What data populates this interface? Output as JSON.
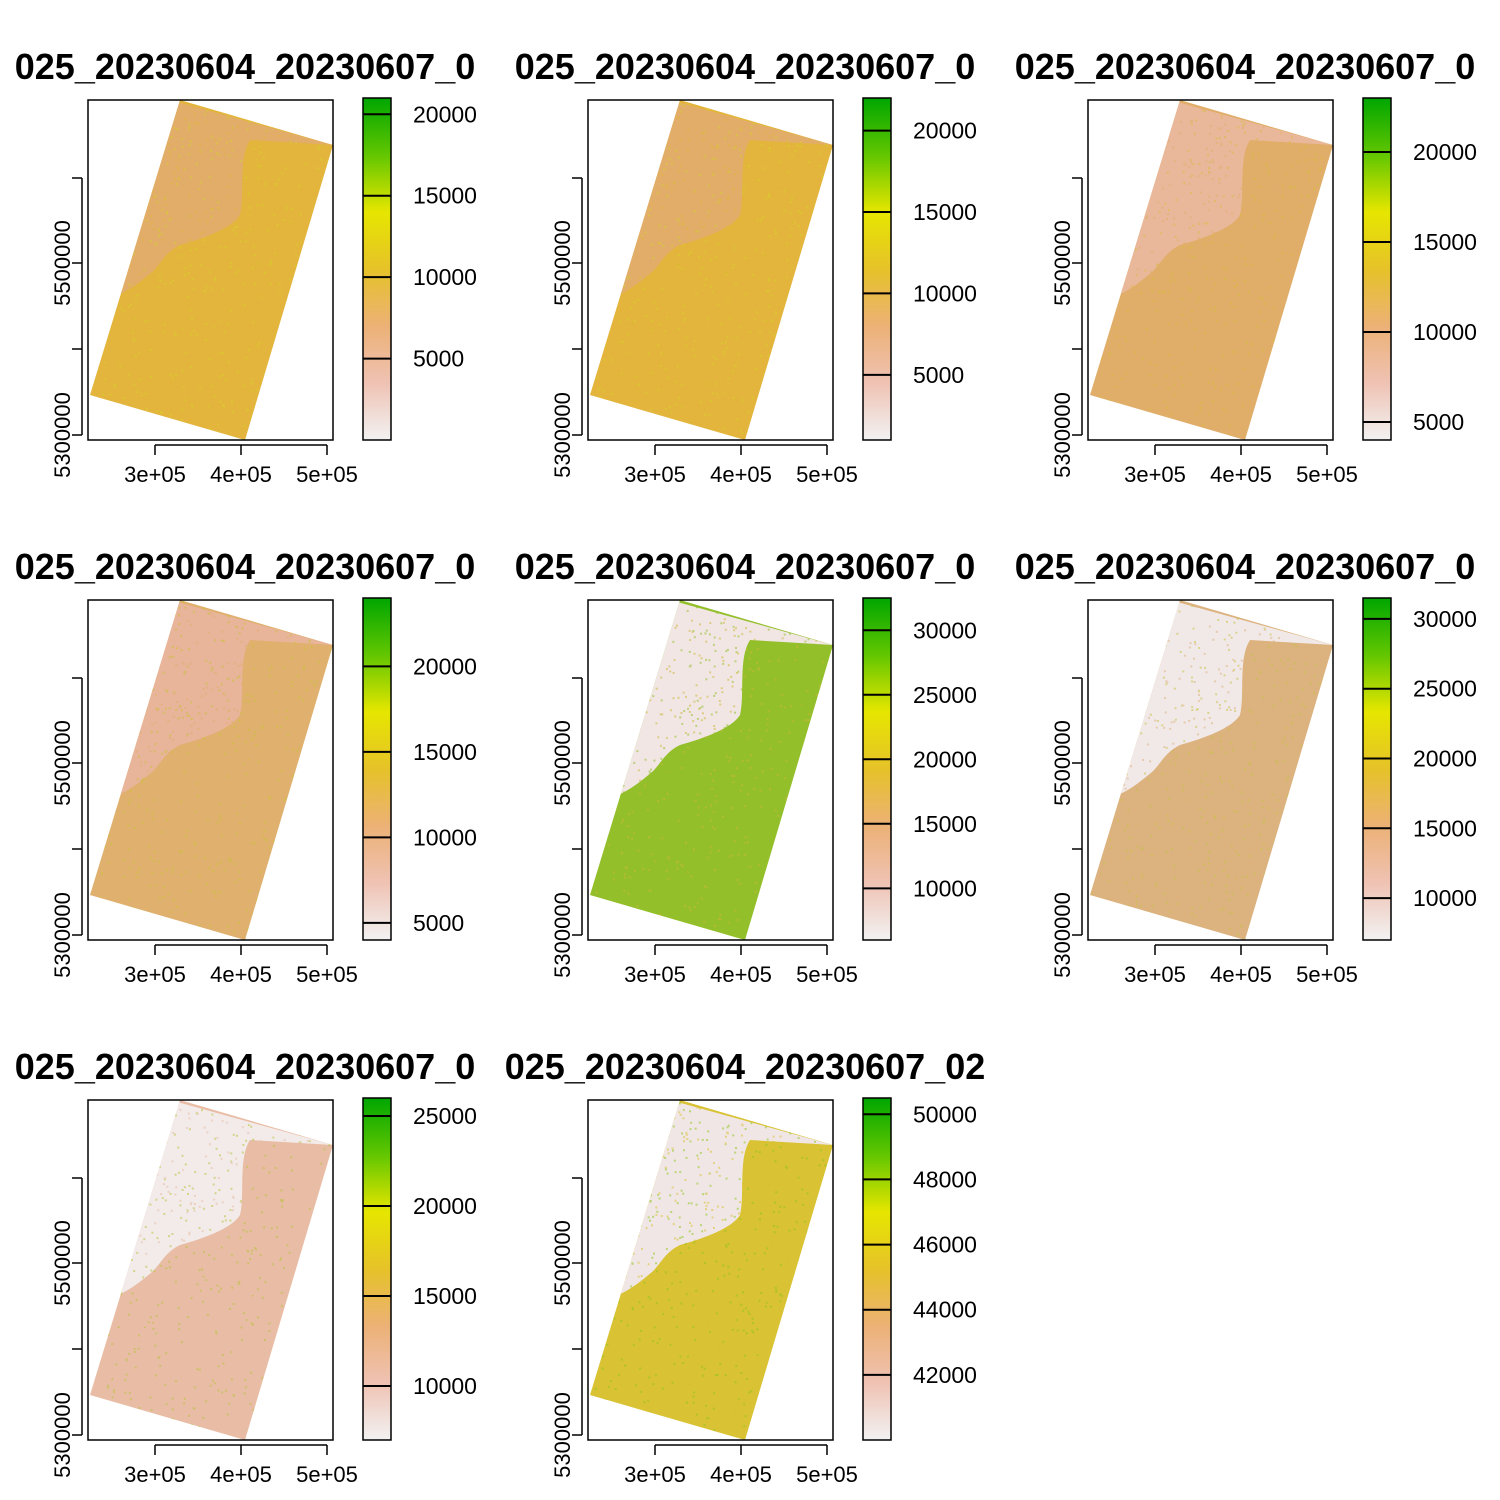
{
  "colors": {
    "ramp": [
      "#f2f2f2",
      "#efc2b3",
      "#ecb176",
      "#e6c229",
      "#e6e600",
      "#63c600",
      "#00a600"
    ]
  },
  "chart_data": [
    {
      "type": "heatmap",
      "title": "025_20230604_20230607_0",
      "x_ticks": [
        "3e+05",
        "4e+05",
        "5e+05"
      ],
      "y_ticks": [
        "5300000",
        "5500000"
      ],
      "legend_range": [
        0,
        21000
      ],
      "legend_ticks": [
        {
          "value": 5000,
          "label": "5000"
        },
        {
          "value": 10000,
          "label": "10000"
        },
        {
          "value": 15000,
          "label": "15000"
        },
        {
          "value": 20000,
          "label": "20000"
        }
      ],
      "fill": {
        "main": "#e3b53c",
        "north": "#e1ad69",
        "speckle": "#d7cf2c"
      }
    },
    {
      "type": "heatmap",
      "title": "025_20230604_20230607_0",
      "x_ticks": [
        "3e+05",
        "4e+05",
        "5e+05"
      ],
      "y_ticks": [
        "5300000",
        "5500000"
      ],
      "legend_range": [
        1000,
        22000
      ],
      "legend_ticks": [
        {
          "value": 5000,
          "label": "5000"
        },
        {
          "value": 10000,
          "label": "10000"
        },
        {
          "value": 15000,
          "label": "15000"
        },
        {
          "value": 20000,
          "label": "20000"
        }
      ],
      "fill": {
        "main": "#e3b53c",
        "north": "#e1ad69",
        "speckle": "#d7cf2c"
      }
    },
    {
      "type": "heatmap",
      "title": "025_20230604_20230607_0",
      "x_ticks": [
        "3e+05",
        "4e+05",
        "5e+05"
      ],
      "y_ticks": [
        "5300000",
        "5500000"
      ],
      "legend_range": [
        4000,
        23000
      ],
      "legend_ticks": [
        {
          "value": 5000,
          "label": "5000"
        },
        {
          "value": 10000,
          "label": "10000"
        },
        {
          "value": 15000,
          "label": "15000"
        },
        {
          "value": 20000,
          "label": "20000"
        }
      ],
      "fill": {
        "main": "#e1ae6a",
        "north": "#e9b89a",
        "speckle": "#d6bd3a"
      }
    },
    {
      "type": "heatmap",
      "title": "025_20230604_20230607_0",
      "x_ticks": [
        "3e+05",
        "4e+05",
        "5e+05"
      ],
      "y_ticks": [
        "5300000",
        "5500000"
      ],
      "legend_range": [
        4000,
        24000
      ],
      "legend_ticks": [
        {
          "value": 5000,
          "label": "5000"
        },
        {
          "value": 10000,
          "label": "10000"
        },
        {
          "value": 15000,
          "label": "15000"
        },
        {
          "value": 20000,
          "label": "20000"
        }
      ],
      "fill": {
        "main": "#e0b06e",
        "north": "#e8b49a",
        "speckle": "#c8c436"
      }
    },
    {
      "type": "heatmap",
      "title": "025_20230604_20230607_0",
      "x_ticks": [
        "3e+05",
        "4e+05",
        "5e+05"
      ],
      "y_ticks": [
        "5300000",
        "5500000"
      ],
      "legend_range": [
        6000,
        32500
      ],
      "legend_ticks": [
        {
          "value": 10000,
          "label": "10000"
        },
        {
          "value": 15000,
          "label": "15000"
        },
        {
          "value": 20000,
          "label": "20000"
        },
        {
          "value": 25000,
          "label": "25000"
        },
        {
          "value": 30000,
          "label": "30000"
        }
      ],
      "fill": {
        "main": "#93bf2a",
        "north": "#f1e6e4",
        "speckle": "#cdb83a"
      }
    },
    {
      "type": "heatmap",
      "title": "025_20230604_20230607_0",
      "x_ticks": [
        "3e+05",
        "4e+05",
        "5e+05"
      ],
      "y_ticks": [
        "5300000",
        "5500000"
      ],
      "legend_range": [
        7000,
        31500
      ],
      "legend_ticks": [
        {
          "value": 10000,
          "label": "10000"
        },
        {
          "value": 15000,
          "label": "15000"
        },
        {
          "value": 20000,
          "label": "20000"
        },
        {
          "value": 25000,
          "label": "25000"
        },
        {
          "value": 30000,
          "label": "30000"
        }
      ],
      "fill": {
        "main": "#dcb27e",
        "north": "#f1e9e8",
        "speckle": "#c6c445"
      }
    },
    {
      "type": "heatmap",
      "title": "025_20230604_20230607_0",
      "x_ticks": [
        "3e+05",
        "4e+05",
        "5e+05"
      ],
      "y_ticks": [
        "5300000",
        "5500000"
      ],
      "legend_range": [
        7000,
        26000
      ],
      "legend_ticks": [
        {
          "value": 10000,
          "label": "10000"
        },
        {
          "value": 15000,
          "label": "15000"
        },
        {
          "value": 20000,
          "label": "20000"
        },
        {
          "value": 25000,
          "label": "25000"
        }
      ],
      "fill": {
        "main": "#e9bda5",
        "north": "#f2ebea",
        "speckle": "#b9c43d"
      }
    },
    {
      "type": "heatmap",
      "title": "025_20230604_20230607_02",
      "x_ticks": [
        "3e+05",
        "4e+05",
        "5e+05"
      ],
      "y_ticks": [
        "5300000",
        "5500000"
      ],
      "legend_range": [
        40000,
        50500
      ],
      "legend_ticks": [
        {
          "value": 42000,
          "label": "42000"
        },
        {
          "value": 44000,
          "label": "44000"
        },
        {
          "value": 46000,
          "label": "46000"
        },
        {
          "value": 48000,
          "label": "48000"
        },
        {
          "value": 50000,
          "label": "50000"
        }
      ],
      "fill": {
        "main": "#d9c233",
        "north": "#f1e6e6",
        "speckle": "#8fc61f"
      }
    }
  ]
}
